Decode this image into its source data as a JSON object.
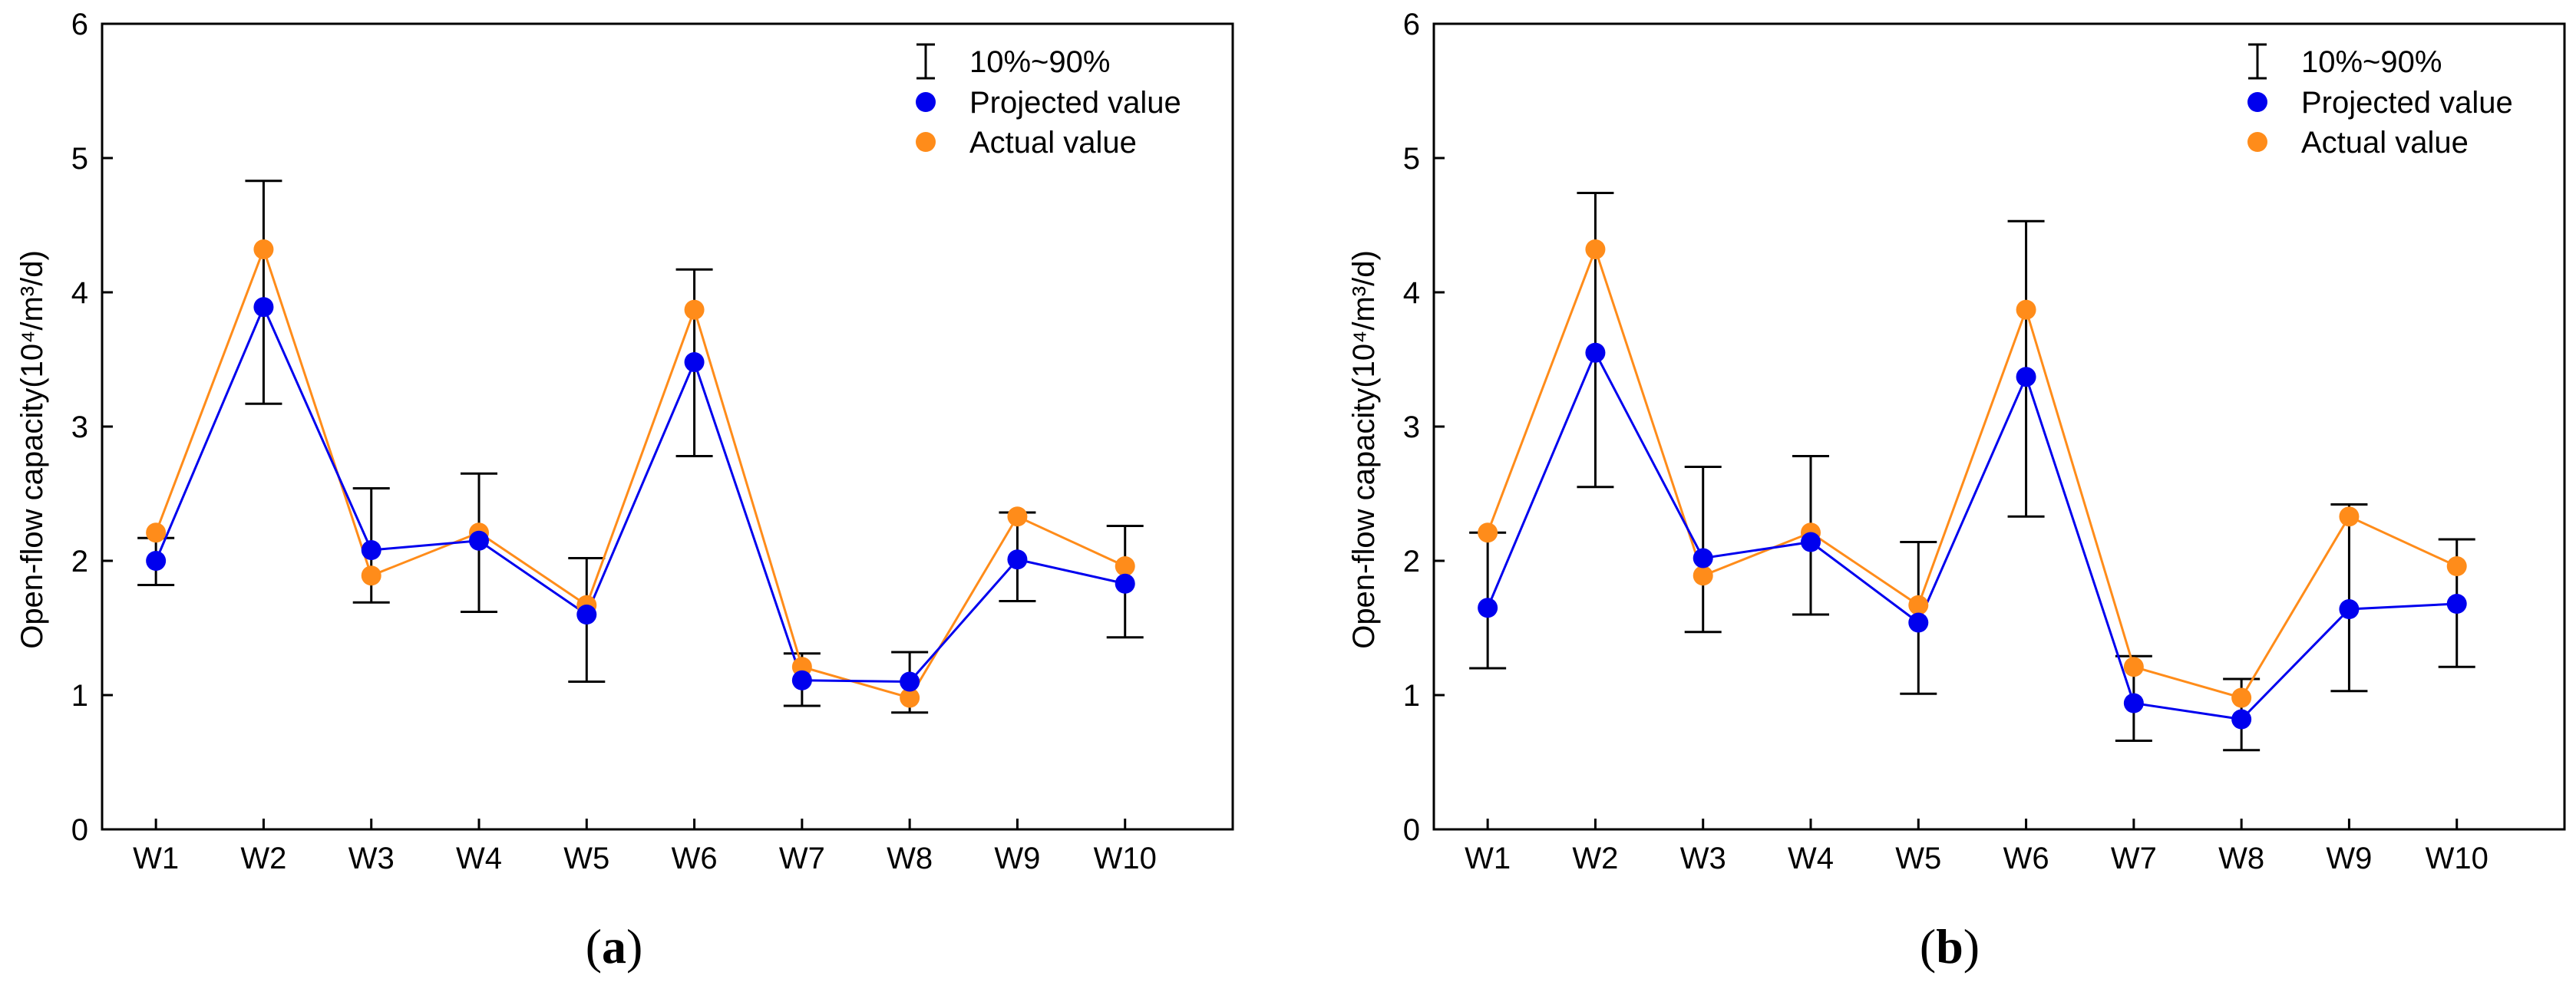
{
  "chart_data": [
    {
      "type": "line",
      "panel_label": "a",
      "title": "",
      "xlabel": "",
      "ylabel": "Open-flow capacity(10⁴/m³/d)",
      "ylim": [
        0,
        6
      ],
      "yticks": [
        0,
        1,
        2,
        3,
        4,
        5,
        6
      ],
      "categories": [
        "W1",
        "W2",
        "W3",
        "W4",
        "W5",
        "W6",
        "W7",
        "W8",
        "W9",
        "W10"
      ],
      "grid": false,
      "legend_position": "top-right",
      "legend": {
        "errorbar": "10%~90%",
        "projected": "Projected value",
        "actual": "Actual value"
      },
      "series": [
        {
          "name": "Projected value",
          "color": "#0000ee",
          "values": [
            2.0,
            3.89,
            2.08,
            2.15,
            1.6,
            3.48,
            1.11,
            1.1,
            2.01,
            1.83
          ]
        },
        {
          "name": "Actual value",
          "color": "#ff8c1a",
          "values": [
            2.21,
            4.32,
            1.89,
            2.21,
            1.67,
            3.87,
            1.21,
            0.98,
            2.33,
            1.96
          ]
        }
      ],
      "error_bars": {
        "name": "10%~90%",
        "low": [
          1.82,
          3.17,
          1.69,
          1.62,
          1.1,
          2.78,
          0.92,
          0.87,
          1.7,
          1.43
        ],
        "high": [
          2.17,
          4.83,
          2.54,
          2.65,
          2.02,
          4.17,
          1.31,
          1.32,
          2.36,
          2.26
        ]
      }
    },
    {
      "type": "line",
      "panel_label": "b",
      "title": "",
      "xlabel": "",
      "ylabel": "Open-flow capacity(10⁴/m³/d)",
      "ylim": [
        0,
        6
      ],
      "yticks": [
        0,
        1,
        2,
        3,
        4,
        5,
        6
      ],
      "categories": [
        "W1",
        "W2",
        "W3",
        "W4",
        "W5",
        "W6",
        "W7",
        "W8",
        "W9",
        "W10"
      ],
      "grid": false,
      "legend_position": "top-right",
      "legend": {
        "errorbar": "10%~90%",
        "projected": "Projected value",
        "actual": "Actual value"
      },
      "series": [
        {
          "name": "Projected value",
          "color": "#0000ee",
          "values": [
            1.65,
            3.55,
            2.02,
            2.14,
            1.54,
            3.37,
            0.94,
            0.82,
            1.64,
            1.68
          ]
        },
        {
          "name": "Actual value",
          "color": "#ff8c1a",
          "values": [
            2.21,
            4.32,
            1.89,
            2.21,
            1.67,
            3.87,
            1.21,
            0.98,
            2.33,
            1.96
          ]
        }
      ],
      "error_bars": {
        "name": "10%~90%",
        "low": [
          1.2,
          2.55,
          1.47,
          1.6,
          1.01,
          2.33,
          0.66,
          0.59,
          1.03,
          1.21
        ],
        "high": [
          2.21,
          4.74,
          2.7,
          2.78,
          2.14,
          4.53,
          1.29,
          1.12,
          2.42,
          2.16
        ]
      }
    }
  ]
}
